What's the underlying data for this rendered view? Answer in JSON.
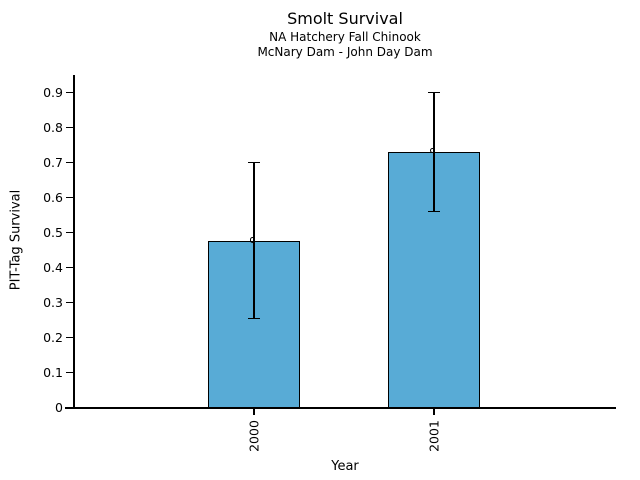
{
  "chart_data": {
    "type": "bar",
    "title": "Smolt Survival",
    "subtitle1": "NA Hatchery Fall Chinook",
    "subtitle2": "McNary Dam - John Day Dam",
    "xlabel": "Year",
    "ylabel": "PIT-Tag Survival",
    "categories": [
      "2000",
      "2001"
    ],
    "values": [
      0.475,
      0.73
    ],
    "error_low": [
      0.255,
      0.56
    ],
    "error_high": [
      0.7,
      0.9
    ],
    "ylim": [
      0,
      0.95
    ],
    "ytick_values": [
      0,
      0.1,
      0.2,
      0.3,
      0.4,
      0.5,
      0.6,
      0.7,
      0.8,
      0.9
    ],
    "ytick_labels": [
      "0",
      "0.1",
      "0.2",
      "0.3",
      "0.4",
      "0.5",
      "0.6",
      "0.7",
      "0.8",
      "0.9"
    ],
    "grid": false,
    "legend": "none",
    "marker": "open-circle",
    "x_labels_rotated": true,
    "bar_color": "#58ABD6",
    "bar_border_color": "#000000",
    "axis_color": "#000000",
    "text_color": "#000000"
  }
}
